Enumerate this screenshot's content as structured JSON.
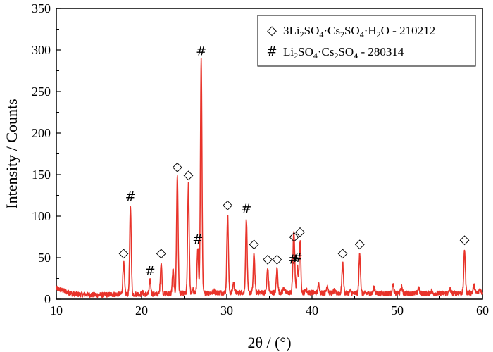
{
  "chart_data": {
    "type": "line",
    "xlabel": "2θ / (°)",
    "ylabel": "Intensity / Counts",
    "xlim": [
      10,
      60
    ],
    "ylim": [
      0,
      350
    ],
    "xticks": [
      10,
      20,
      30,
      40,
      50,
      60
    ],
    "yticks": [
      0,
      50,
      100,
      150,
      200,
      250,
      300,
      350
    ],
    "grid": false,
    "legend_position": "top-right",
    "series_color": "#e8332a",
    "legend": [
      {
        "symbol": "◇",
        "text_parts": [
          {
            "t": "3Li"
          },
          {
            "t": "2",
            "sub": true
          },
          {
            "t": "SO"
          },
          {
            "t": "4",
            "sub": true
          },
          {
            "t": "·Cs"
          },
          {
            "t": "2",
            "sub": true
          },
          {
            "t": "SO"
          },
          {
            "t": "4",
            "sub": true
          },
          {
            "t": "·H"
          },
          {
            "t": "2",
            "sub": true
          },
          {
            "t": "O - 210212"
          }
        ]
      },
      {
        "symbol": "#",
        "text_parts": [
          {
            "t": "Li"
          },
          {
            "t": "2",
            "sub": true
          },
          {
            "t": "SO"
          },
          {
            "t": "4",
            "sub": true
          },
          {
            "t": "·Cs"
          },
          {
            "t": "2",
            "sub": true
          },
          {
            "t": "SO"
          },
          {
            "t": "4",
            "sub": true
          },
          {
            "t": " - 280314"
          }
        ]
      }
    ],
    "peaks": [
      {
        "x": 17.9,
        "y": 44,
        "symbol": "◇"
      },
      {
        "x": 18.7,
        "y": 112,
        "symbol": "#"
      },
      {
        "x": 21.0,
        "y": 22,
        "symbol": "#"
      },
      {
        "x": 22.3,
        "y": 44,
        "symbol": "◇"
      },
      {
        "x": 24.2,
        "y": 148,
        "symbol": "◇"
      },
      {
        "x": 25.5,
        "y": 138,
        "symbol": "◇"
      },
      {
        "x": 26.6,
        "y": 60,
        "symbol": "#"
      },
      {
        "x": 27.0,
        "y": 287,
        "symbol": "#"
      },
      {
        "x": 30.1,
        "y": 102,
        "symbol": "◇"
      },
      {
        "x": 32.3,
        "y": 97,
        "symbol": "#"
      },
      {
        "x": 33.2,
        "y": 55,
        "symbol": "◇"
      },
      {
        "x": 34.8,
        "y": 37,
        "symbol": "◇"
      },
      {
        "x": 35.9,
        "y": 37,
        "symbol": "◇"
      },
      {
        "x": 37.8,
        "y": 36,
        "symbol": "#"
      },
      {
        "x": 38.3,
        "y": 38,
        "symbol": "#"
      },
      {
        "x": 37.9,
        "y": 64,
        "symbol": "◇"
      },
      {
        "x": 38.6,
        "y": 70,
        "symbol": "◇"
      },
      {
        "x": 43.6,
        "y": 44,
        "symbol": "◇"
      },
      {
        "x": 45.6,
        "y": 55,
        "symbol": "◇"
      },
      {
        "x": 57.9,
        "y": 60,
        "symbol": "◇"
      }
    ],
    "minor_peaks": [
      {
        "x": 20.1,
        "y": 8
      },
      {
        "x": 23.7,
        "y": 35
      },
      {
        "x": 26.0,
        "y": 12
      },
      {
        "x": 28.5,
        "y": 10
      },
      {
        "x": 30.8,
        "y": 20
      },
      {
        "x": 36.7,
        "y": 14
      },
      {
        "x": 39.3,
        "y": 12
      },
      {
        "x": 40.8,
        "y": 18
      },
      {
        "x": 41.8,
        "y": 17
      },
      {
        "x": 42.6,
        "y": 10
      },
      {
        "x": 44.5,
        "y": 10
      },
      {
        "x": 47.3,
        "y": 14
      },
      {
        "x": 49.5,
        "y": 18
      },
      {
        "x": 50.5,
        "y": 15
      },
      {
        "x": 52.5,
        "y": 14
      },
      {
        "x": 54.0,
        "y": 10
      },
      {
        "x": 56.2,
        "y": 12
      },
      {
        "x": 59.0,
        "y": 16
      },
      {
        "x": 59.7,
        "y": 12
      }
    ],
    "baseline": [
      {
        "x": 10,
        "y": 13
      },
      {
        "x": 12,
        "y": 6
      },
      {
        "x": 15,
        "y": 5
      },
      {
        "x": 17,
        "y": 6
      },
      {
        "x": 20,
        "y": 6
      },
      {
        "x": 25,
        "y": 7
      },
      {
        "x": 30,
        "y": 8
      },
      {
        "x": 35,
        "y": 8
      },
      {
        "x": 40,
        "y": 8
      },
      {
        "x": 45,
        "y": 7
      },
      {
        "x": 50,
        "y": 7
      },
      {
        "x": 55,
        "y": 7
      },
      {
        "x": 60,
        "y": 8
      }
    ]
  }
}
